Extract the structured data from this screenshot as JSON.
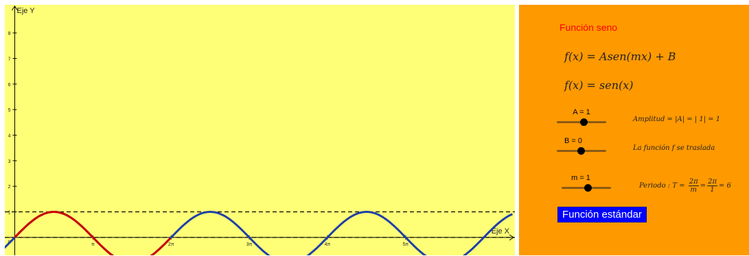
{
  "graph": {
    "y_axis_label": "Eje Y",
    "x_axis_label": "Eje X",
    "y_ticks": [
      "1",
      "2",
      "3",
      "4",
      "5",
      "6",
      "7",
      "8"
    ],
    "origin_label": "0",
    "x_ticks": [
      "π",
      "2π",
      "3π",
      "4π",
      "5π"
    ],
    "colors": {
      "background": "#ffff77",
      "highlight_curve": "#cc0000",
      "curve": "#1f3fa8",
      "dashed_lines": "#000000"
    }
  },
  "chart_data": {
    "type": "line",
    "title": "",
    "xlabel": "Eje X",
    "ylabel": "Eje Y",
    "series": [
      {
        "name": "",
        "function": "sin(x)",
        "domain": [
          0,
          6.2832
        ],
        "color": "#cc0000"
      },
      {
        "name": "",
        "function": "sin(x)",
        "domain": [
          -0.5,
          20.0
        ],
        "color": "#1f3fa8"
      }
    ],
    "reference_lines": [
      {
        "y": 1,
        "style": "dashed"
      },
      {
        "y": 0,
        "style": "dashed"
      }
    ],
    "xlim": [
      -0.4,
      20.1
    ],
    "ylim": [
      -0.7,
      9.1
    ]
  },
  "panel": {
    "title": "Función seno",
    "formula_general": "f(x) = Asen(mx) + B",
    "formula_current": "f(x)  =  sen(x)",
    "slider_A": {
      "label": "A = 1",
      "value": 1
    },
    "slider_B": {
      "label": "B = 0",
      "value": 0
    },
    "slider_m": {
      "label": "m = 1",
      "value": 1
    },
    "amplitude_text": "Amplitud = |A| = | 1| = 1",
    "shift_text": "La función f se traslada",
    "period_prefix": "Periodo : T =",
    "period_frac1_num": "2π",
    "period_frac1_den": "m",
    "period_frac2_num": "2π",
    "period_frac2_den": "1",
    "period_suffix": "= 6",
    "button_label": "Función estándar",
    "colors": {
      "background": "#ff9900",
      "title": "#ff0000",
      "button": "#0000ff"
    }
  }
}
